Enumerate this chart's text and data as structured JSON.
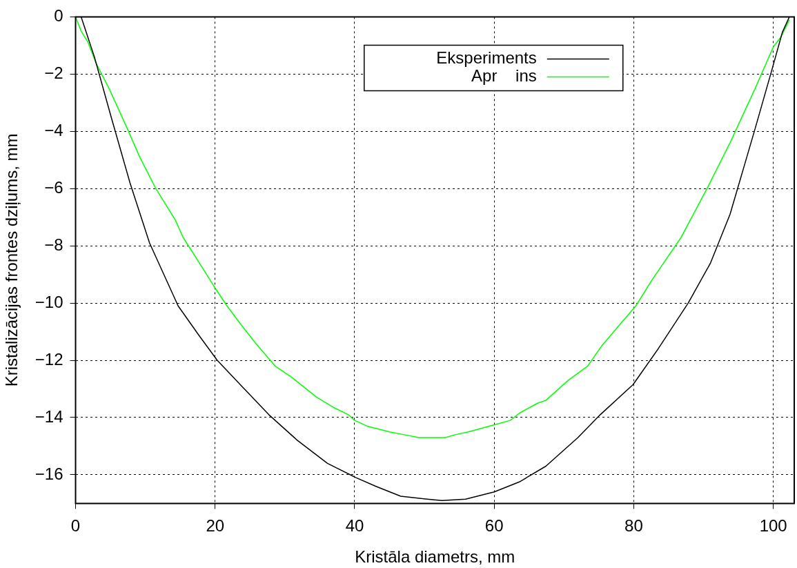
{
  "chart_data": {
    "type": "line",
    "xlabel": "Kristāla diametrs, mm",
    "ylabel": "Kristalizācijas frontes dziļums, mm",
    "xlim": [
      0,
      103
    ],
    "ylim": [
      -17,
      0
    ],
    "xticks": [
      0,
      20,
      40,
      60,
      80,
      100
    ],
    "yticks": [
      -16,
      -14,
      -12,
      -10,
      -8,
      -6,
      -4,
      -2,
      0
    ],
    "grid": true,
    "legend": "top",
    "marker": "none",
    "line_style": "solid",
    "series": [
      {
        "name": "Eksperiments",
        "color": "#000000",
        "x": [
          0.8,
          2.7,
          5.1,
          7.8,
          10.6,
          14.7,
          17.6,
          20.3,
          24,
          27.7,
          31.8,
          36.1,
          40.2,
          43,
          46.6,
          50.4,
          52.5,
          55.9,
          60,
          63.6,
          67.4,
          72,
          75.2,
          79.9,
          83.5,
          87.8,
          91,
          93.8,
          95.6,
          97.4,
          99.8,
          101.3,
          102.3
        ],
        "values": [
          0,
          -1.4,
          -3.5,
          -5.8,
          -7.9,
          -10.1,
          -11.1,
          -12,
          -12.95,
          -13.9,
          -14.8,
          -15.6,
          -16.1,
          -16.4,
          -16.75,
          -16.85,
          -16.9,
          -16.85,
          -16.6,
          -16.25,
          -15.7,
          -14.7,
          -13.9,
          -12.85,
          -11.6,
          -10,
          -8.6,
          -6.9,
          -5.4,
          -3.9,
          -1.85,
          -0.54,
          0
        ]
      },
      {
        "name": "Apr    ins",
        "color": "#00ff00",
        "x": [
          0,
          0.8,
          1.8,
          2.9,
          4.8,
          7.4,
          9.2,
          11.5,
          14.3,
          15.4,
          18,
          19.8,
          21.7,
          23.7,
          25.8,
          28.6,
          31,
          34.6,
          37,
          39.1,
          40,
          41.8,
          45,
          47.1,
          49.2,
          53,
          54.4,
          56.3,
          59.3,
          62.3,
          63.6,
          66.2,
          67.4,
          70.6,
          73.4,
          75.4,
          78,
          80.3,
          82.6,
          86.8,
          90.5,
          93.8,
          97.4,
          100,
          101.1,
          102.3
        ],
        "values": [
          0,
          -0.5,
          -0.9,
          -1.6,
          -2.5,
          -3.9,
          -4.9,
          -6,
          -7.1,
          -7.7,
          -8.7,
          -9.4,
          -10.1,
          -10.75,
          -11.4,
          -12.2,
          -12.6,
          -13.3,
          -13.65,
          -13.9,
          -14.1,
          -14.3,
          -14.5,
          -14.6,
          -14.7,
          -14.7,
          -14.6,
          -14.5,
          -14.3,
          -14.1,
          -13.85,
          -13.5,
          -13.4,
          -12.7,
          -12.2,
          -11.5,
          -10.75,
          -10.1,
          -9.2,
          -7.7,
          -6,
          -4.4,
          -2.5,
          -1.05,
          -0.7,
          -0.1
        ]
      }
    ]
  }
}
